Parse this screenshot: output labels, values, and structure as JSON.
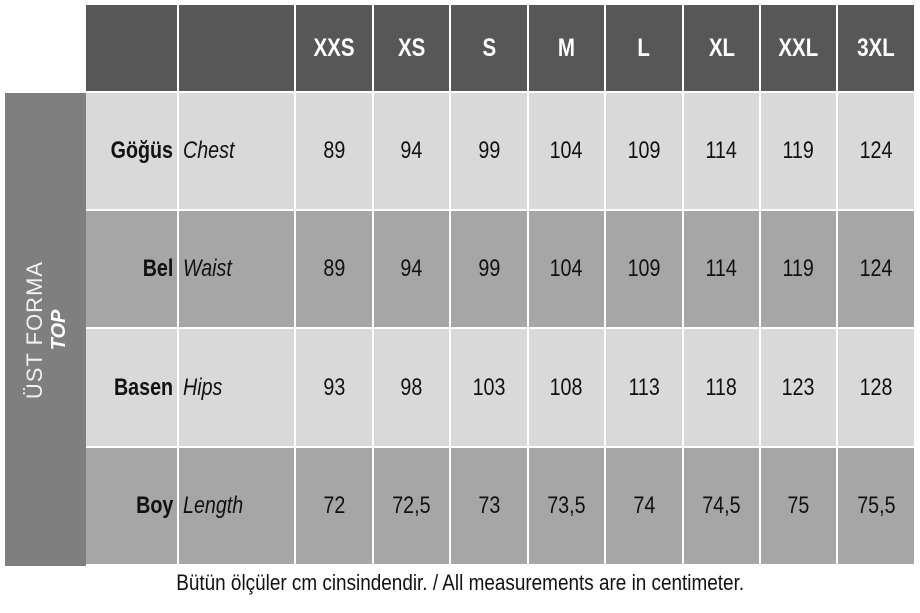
{
  "sizes": [
    "XXS",
    "XS",
    "S",
    "M",
    "L",
    "XL",
    "XXL",
    "3XL"
  ],
  "section": {
    "label_tr": "ÜST FORMA",
    "label_en": "TOP"
  },
  "rows": [
    {
      "tr": "Göğüs",
      "en": "Chest",
      "values": [
        "89",
        "94",
        "99",
        "104",
        "109",
        "114",
        "119",
        "124"
      ]
    },
    {
      "tr": "Bel",
      "en": "Waist",
      "values": [
        "89",
        "94",
        "99",
        "104",
        "109",
        "114",
        "119",
        "124"
      ]
    },
    {
      "tr": "Basen",
      "en": "Hips",
      "values": [
        "93",
        "98",
        "103",
        "108",
        "113",
        "118",
        "123",
        "128"
      ]
    },
    {
      "tr": "Boy",
      "en": "Length",
      "values": [
        "72",
        "72,5",
        "73",
        "73,5",
        "74",
        "74,5",
        "75",
        "75,5"
      ]
    }
  ],
  "footer": "Bütün ölçüler cm cinsindendir. / All measurements are in centimeter.",
  "colors": {
    "header": "#575757",
    "row_light": "#d9d9d9",
    "row_dark": "#a6a6a6",
    "side": "#7f7f7f"
  }
}
